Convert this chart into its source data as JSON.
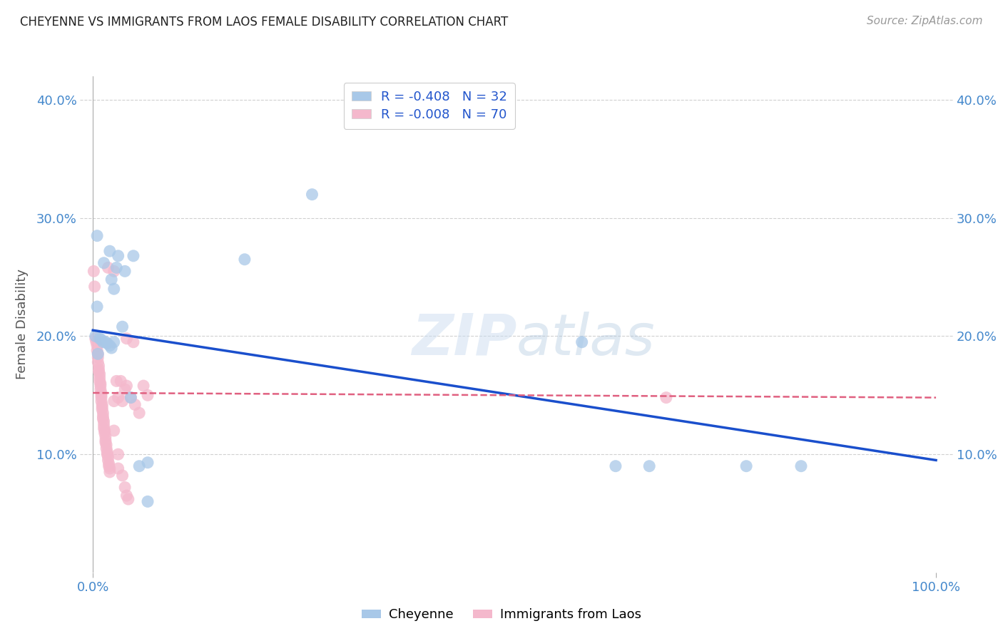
{
  "title": "CHEYENNE VS IMMIGRANTS FROM LAOS FEMALE DISABILITY CORRELATION CHART",
  "source": "Source: ZipAtlas.com",
  "ylabel": "Female Disability",
  "background_color": "#ffffff",
  "grid_color": "#d0d0d0",
  "cheyenne_color": "#a8c8e8",
  "laos_color": "#f4b8cc",
  "cheyenne_line_color": "#1a4fcc",
  "laos_line_color": "#e06080",
  "legend_r1": "R = -0.408",
  "legend_n1": "N = 32",
  "legend_r2": "R = -0.008",
  "legend_n2": "N = 70",
  "cheyenne_points": [
    [
      0.005,
      0.285
    ],
    [
      0.013,
      0.262
    ],
    [
      0.02,
      0.272
    ],
    [
      0.03,
      0.268
    ],
    [
      0.26,
      0.32
    ],
    [
      0.18,
      0.265
    ],
    [
      0.028,
      0.258
    ],
    [
      0.038,
      0.255
    ],
    [
      0.022,
      0.248
    ],
    [
      0.025,
      0.24
    ],
    [
      0.005,
      0.225
    ],
    [
      0.048,
      0.268
    ],
    [
      0.035,
      0.208
    ],
    [
      0.003,
      0.2
    ],
    [
      0.008,
      0.198
    ],
    [
      0.01,
      0.197
    ],
    [
      0.012,
      0.195
    ],
    [
      0.015,
      0.195
    ],
    [
      0.017,
      0.194
    ],
    [
      0.02,
      0.192
    ],
    [
      0.022,
      0.19
    ],
    [
      0.025,
      0.195
    ],
    [
      0.006,
      0.185
    ],
    [
      0.045,
      0.148
    ],
    [
      0.58,
      0.195
    ],
    [
      0.055,
      0.09
    ],
    [
      0.065,
      0.093
    ],
    [
      0.065,
      0.06
    ],
    [
      0.62,
      0.09
    ],
    [
      0.66,
      0.09
    ],
    [
      0.775,
      0.09
    ],
    [
      0.84,
      0.09
    ]
  ],
  "laos_points": [
    [
      0.001,
      0.255
    ],
    [
      0.002,
      0.242
    ],
    [
      0.003,
      0.198
    ],
    [
      0.004,
      0.195
    ],
    [
      0.005,
      0.192
    ],
    [
      0.005,
      0.188
    ],
    [
      0.006,
      0.185
    ],
    [
      0.006,
      0.182
    ],
    [
      0.006,
      0.178
    ],
    [
      0.007,
      0.175
    ],
    [
      0.007,
      0.172
    ],
    [
      0.007,
      0.17
    ],
    [
      0.008,
      0.168
    ],
    [
      0.008,
      0.165
    ],
    [
      0.008,
      0.162
    ],
    [
      0.009,
      0.16
    ],
    [
      0.009,
      0.158
    ],
    [
      0.009,
      0.155
    ],
    [
      0.01,
      0.152
    ],
    [
      0.01,
      0.15
    ],
    [
      0.01,
      0.148
    ],
    [
      0.01,
      0.145
    ],
    [
      0.011,
      0.142
    ],
    [
      0.011,
      0.14
    ],
    [
      0.011,
      0.138
    ],
    [
      0.012,
      0.135
    ],
    [
      0.012,
      0.132
    ],
    [
      0.012,
      0.13
    ],
    [
      0.013,
      0.128
    ],
    [
      0.013,
      0.125
    ],
    [
      0.013,
      0.122
    ],
    [
      0.014,
      0.12
    ],
    [
      0.014,
      0.118
    ],
    [
      0.015,
      0.115
    ],
    [
      0.015,
      0.112
    ],
    [
      0.015,
      0.11
    ],
    [
      0.016,
      0.108
    ],
    [
      0.016,
      0.105
    ],
    [
      0.017,
      0.102
    ],
    [
      0.017,
      0.1
    ],
    [
      0.018,
      0.098
    ],
    [
      0.018,
      0.095
    ],
    [
      0.019,
      0.092
    ],
    [
      0.019,
      0.09
    ],
    [
      0.02,
      0.088
    ],
    [
      0.02,
      0.085
    ],
    [
      0.025,
      0.145
    ],
    [
      0.028,
      0.162
    ],
    [
      0.03,
      0.148
    ],
    [
      0.033,
      0.162
    ],
    [
      0.038,
      0.155
    ],
    [
      0.04,
      0.158
    ],
    [
      0.045,
      0.148
    ],
    [
      0.05,
      0.142
    ],
    [
      0.055,
      0.135
    ],
    [
      0.018,
      0.258
    ],
    [
      0.025,
      0.255
    ],
    [
      0.04,
      0.198
    ],
    [
      0.048,
      0.195
    ],
    [
      0.06,
      0.158
    ],
    [
      0.025,
      0.12
    ],
    [
      0.03,
      0.1
    ],
    [
      0.03,
      0.088
    ],
    [
      0.035,
      0.082
    ],
    [
      0.038,
      0.072
    ],
    [
      0.04,
      0.065
    ],
    [
      0.042,
      0.062
    ],
    [
      0.035,
      0.145
    ],
    [
      0.065,
      0.15
    ],
    [
      0.68,
      0.148
    ]
  ],
  "xlim": [
    -0.015,
    1.02
  ],
  "ylim": [
    0.0,
    0.42
  ],
  "x_ticks": [
    0.0,
    1.0
  ],
  "x_ticklabels": [
    "0.0%",
    "100.0%"
  ],
  "y_ticks": [
    0.1,
    0.2,
    0.3,
    0.4
  ],
  "y_ticklabels": [
    "10.0%",
    "20.0%",
    "30.0%",
    "40.0%"
  ],
  "cheyenne_line_x": [
    0.0,
    1.0
  ],
  "cheyenne_line_y": [
    0.205,
    0.095
  ],
  "laos_line_x": [
    0.0,
    1.0
  ],
  "laos_line_y": [
    0.152,
    0.148
  ]
}
